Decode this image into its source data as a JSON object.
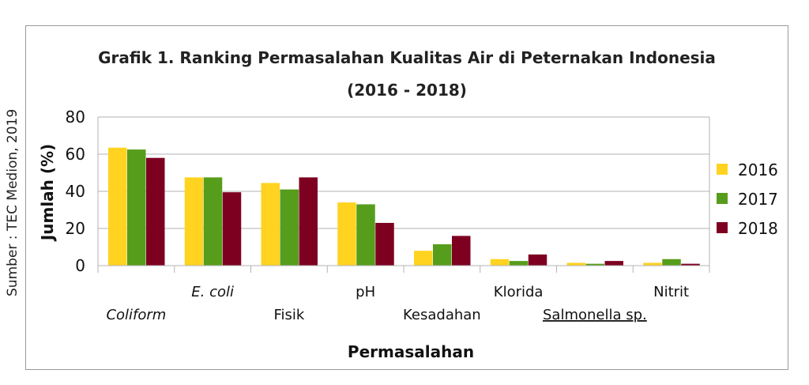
{
  "source": "Sumber : TEC Medion, 2019",
  "chart_data": {
    "type": "bar",
    "title": "Grafik 1. Ranking Permasalahan Kualitas Air di Peternakan Indonesia",
    "subtitle": "(2016 - 2018)",
    "xlabel": "Permasalahan",
    "ylabel": "Jumlah (%)",
    "ylim": [
      0,
      80
    ],
    "yticks": [
      "0",
      "20",
      "40",
      "60",
      "80"
    ],
    "grid": true,
    "legend_position": "right",
    "categories": [
      "Coliform",
      "E. coli",
      "Fisik",
      "pH",
      "Kesadahan",
      "Klorida",
      "Salmonella sp.",
      "Nitrit"
    ],
    "category_styles": [
      "italic",
      "italic",
      "normal",
      "normal",
      "normal",
      "normal",
      "underline",
      "normal"
    ],
    "series": [
      {
        "name": "2016",
        "color": "#FFD320",
        "values": [
          63.5,
          47.5,
          44.5,
          34,
          8,
          3.5,
          1.5,
          1.5
        ]
      },
      {
        "name": "2017",
        "color": "#579D1C",
        "values": [
          62.5,
          47.5,
          41,
          33,
          11.5,
          2.5,
          1,
          3.5
        ]
      },
      {
        "name": "2018",
        "color": "#7E0021",
        "values": [
          58,
          39.5,
          47.5,
          23,
          16,
          6,
          2.5,
          1
        ]
      }
    ]
  }
}
